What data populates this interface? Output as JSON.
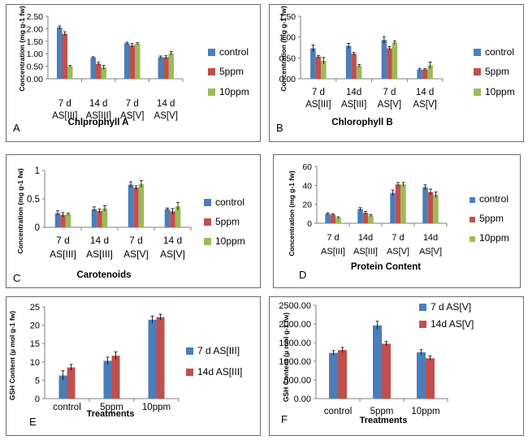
{
  "colors": {
    "c1": "#4a7ebb",
    "c2": "#c0504d",
    "c3": "#9bbb59",
    "axis": "#7f7f7f",
    "err": "#000000"
  },
  "chart_data": [
    {
      "panel_letter": "A",
      "type": "bar",
      "title": "Chlprophyll A",
      "xlabel": "",
      "ylabel": "Concentration (mg g-1 fw)",
      "ylim": [
        0,
        2.5
      ],
      "yticks": [
        "0.00",
        "0.50",
        "1.00",
        "1.50",
        "2.00",
        "2.50"
      ],
      "categories": [
        [
          "7 d",
          "AS[III]"
        ],
        [
          "14 d",
          "AS[III]"
        ],
        [
          "7 d",
          "AS[V]"
        ],
        [
          "14 d",
          "AS[V]"
        ]
      ],
      "series": [
        {
          "name": "control",
          "values": [
            2.05,
            0.85,
            1.42,
            0.86
          ],
          "errors": [
            0.06,
            0.03,
            0.04,
            0.05
          ]
        },
        {
          "name": "5ppm",
          "values": [
            1.8,
            0.6,
            1.33,
            0.86
          ],
          "errors": [
            0.08,
            0.06,
            0.07,
            0.06
          ]
        },
        {
          "name": "10ppm",
          "values": [
            0.5,
            0.45,
            1.4,
            1.02
          ],
          "errors": [
            0.03,
            0.08,
            0.04,
            0.07
          ]
        }
      ]
    },
    {
      "panel_letter": "B",
      "type": "bar",
      "title": "Chlorophyll B",
      "xlabel": "",
      "ylabel": "Concentration (mg g-1 fw)",
      "ylim": [
        0,
        1.5
      ],
      "yticks": [
        "0.00",
        "0.50",
        "1.00",
        "1.50"
      ],
      "categories": [
        [
          "7 d",
          "AS[III]"
        ],
        [
          "14d",
          "AS[III]"
        ],
        [
          "7 d",
          "AS[V]"
        ],
        [
          "14 d",
          "AS[V]"
        ]
      ],
      "series": [
        {
          "name": "control",
          "values": [
            0.73,
            0.79,
            0.93,
            0.22
          ],
          "errors": [
            0.08,
            0.06,
            0.08,
            0.03
          ]
        },
        {
          "name": "5ppm",
          "values": [
            0.53,
            0.6,
            0.73,
            0.22
          ],
          "errors": [
            0.03,
            0.03,
            0.04,
            0.02
          ]
        },
        {
          "name": "10ppm",
          "values": [
            0.43,
            0.31,
            0.87,
            0.32
          ],
          "errors": [
            0.08,
            0.03,
            0.04,
            0.08
          ]
        }
      ]
    },
    {
      "panel_letter": "C",
      "type": "bar",
      "title": "Carotenoids",
      "xlabel": "",
      "ylabel": "Concentration (mg g-1 fw)",
      "ylim": [
        0,
        1
      ],
      "yticks": [
        "0",
        "0.5",
        "1"
      ],
      "categories": [
        [
          "7 d",
          "AS[III]"
        ],
        [
          "14 d",
          "AS[III]"
        ],
        [
          "7 d",
          "AS[V]"
        ],
        [
          "14 d",
          "AS[V]"
        ]
      ],
      "series": [
        {
          "name": "control",
          "values": [
            0.25,
            0.32,
            0.75,
            0.32
          ],
          "errors": [
            0.04,
            0.04,
            0.05,
            0.02
          ]
        },
        {
          "name": "5ppm",
          "values": [
            0.22,
            0.29,
            0.7,
            0.28
          ],
          "errors": [
            0.04,
            0.03,
            0.03,
            0.05
          ]
        },
        {
          "name": "10ppm",
          "values": [
            0.23,
            0.33,
            0.76,
            0.37
          ],
          "errors": [
            0.02,
            0.05,
            0.06,
            0.07
          ]
        }
      ]
    },
    {
      "panel_letter": "D",
      "type": "bar",
      "title": "Protein Content",
      "xlabel": "",
      "ylabel": "Concentration (mg g-1 fw)",
      "ylim": [
        0,
        60
      ],
      "yticks": [
        "0",
        "20",
        "40",
        "60"
      ],
      "categories": [
        [
          "7 d",
          "AS[III]"
        ],
        [
          "14d",
          "AS[III]"
        ],
        [
          "7 d",
          "AS[V]"
        ],
        [
          "14d",
          "AS[V]"
        ]
      ],
      "series": [
        {
          "name": "control",
          "values": [
            10,
            15,
            32,
            38
          ],
          "errors": [
            1.0,
            1.5,
            3.0,
            2.5
          ]
        },
        {
          "name": "5ppm",
          "values": [
            9,
            11,
            41,
            33
          ],
          "errors": [
            1.0,
            1.5,
            2.0,
            3.0
          ]
        },
        {
          "name": "10ppm",
          "values": [
            6,
            8,
            41,
            30
          ],
          "errors": [
            0.8,
            1.0,
            2.0,
            3.0
          ]
        }
      ]
    },
    {
      "panel_letter": "E",
      "type": "bar",
      "title": "",
      "xlabel": "Treatments",
      "ylabel": "GSH Content (µ mol g-1 fw)",
      "ylim": [
        0,
        25
      ],
      "yticks": [
        "0",
        "5",
        "10",
        "15",
        "20",
        "25"
      ],
      "categories": [
        [
          "control"
        ],
        [
          "5ppm"
        ],
        [
          "10ppm"
        ]
      ],
      "series": [
        {
          "name": "7 d AS[III]",
          "values": [
            6.3,
            10.3,
            21.5
          ],
          "errors": [
            1.3,
            1.0,
            1.0
          ]
        },
        {
          "name": "14d AS[III]",
          "values": [
            8.5,
            11.7,
            22.2
          ],
          "errors": [
            0.8,
            1.0,
            0.8
          ]
        }
      ]
    },
    {
      "panel_letter": "F",
      "type": "bar",
      "title": "",
      "xlabel": "Treatments",
      "ylabel": "GSH Content (µ mol g-1 fw)",
      "ylim": [
        0,
        2500
      ],
      "yticks": [
        "0.00",
        "500.00",
        "1000.00",
        "1500.00",
        "2000.00",
        "2500.00"
      ],
      "categories": [
        [
          "control"
        ],
        [
          "5ppm"
        ],
        [
          "10ppm"
        ]
      ],
      "series": [
        {
          "name": "7 d AS[V]",
          "values": [
            1225,
            1960,
            1240
          ],
          "errors": [
            60,
            110,
            70
          ]
        },
        {
          "name": "14d AS[V]",
          "values": [
            1300,
            1470,
            1080
          ],
          "errors": [
            70,
            60,
            60
          ]
        }
      ]
    }
  ]
}
